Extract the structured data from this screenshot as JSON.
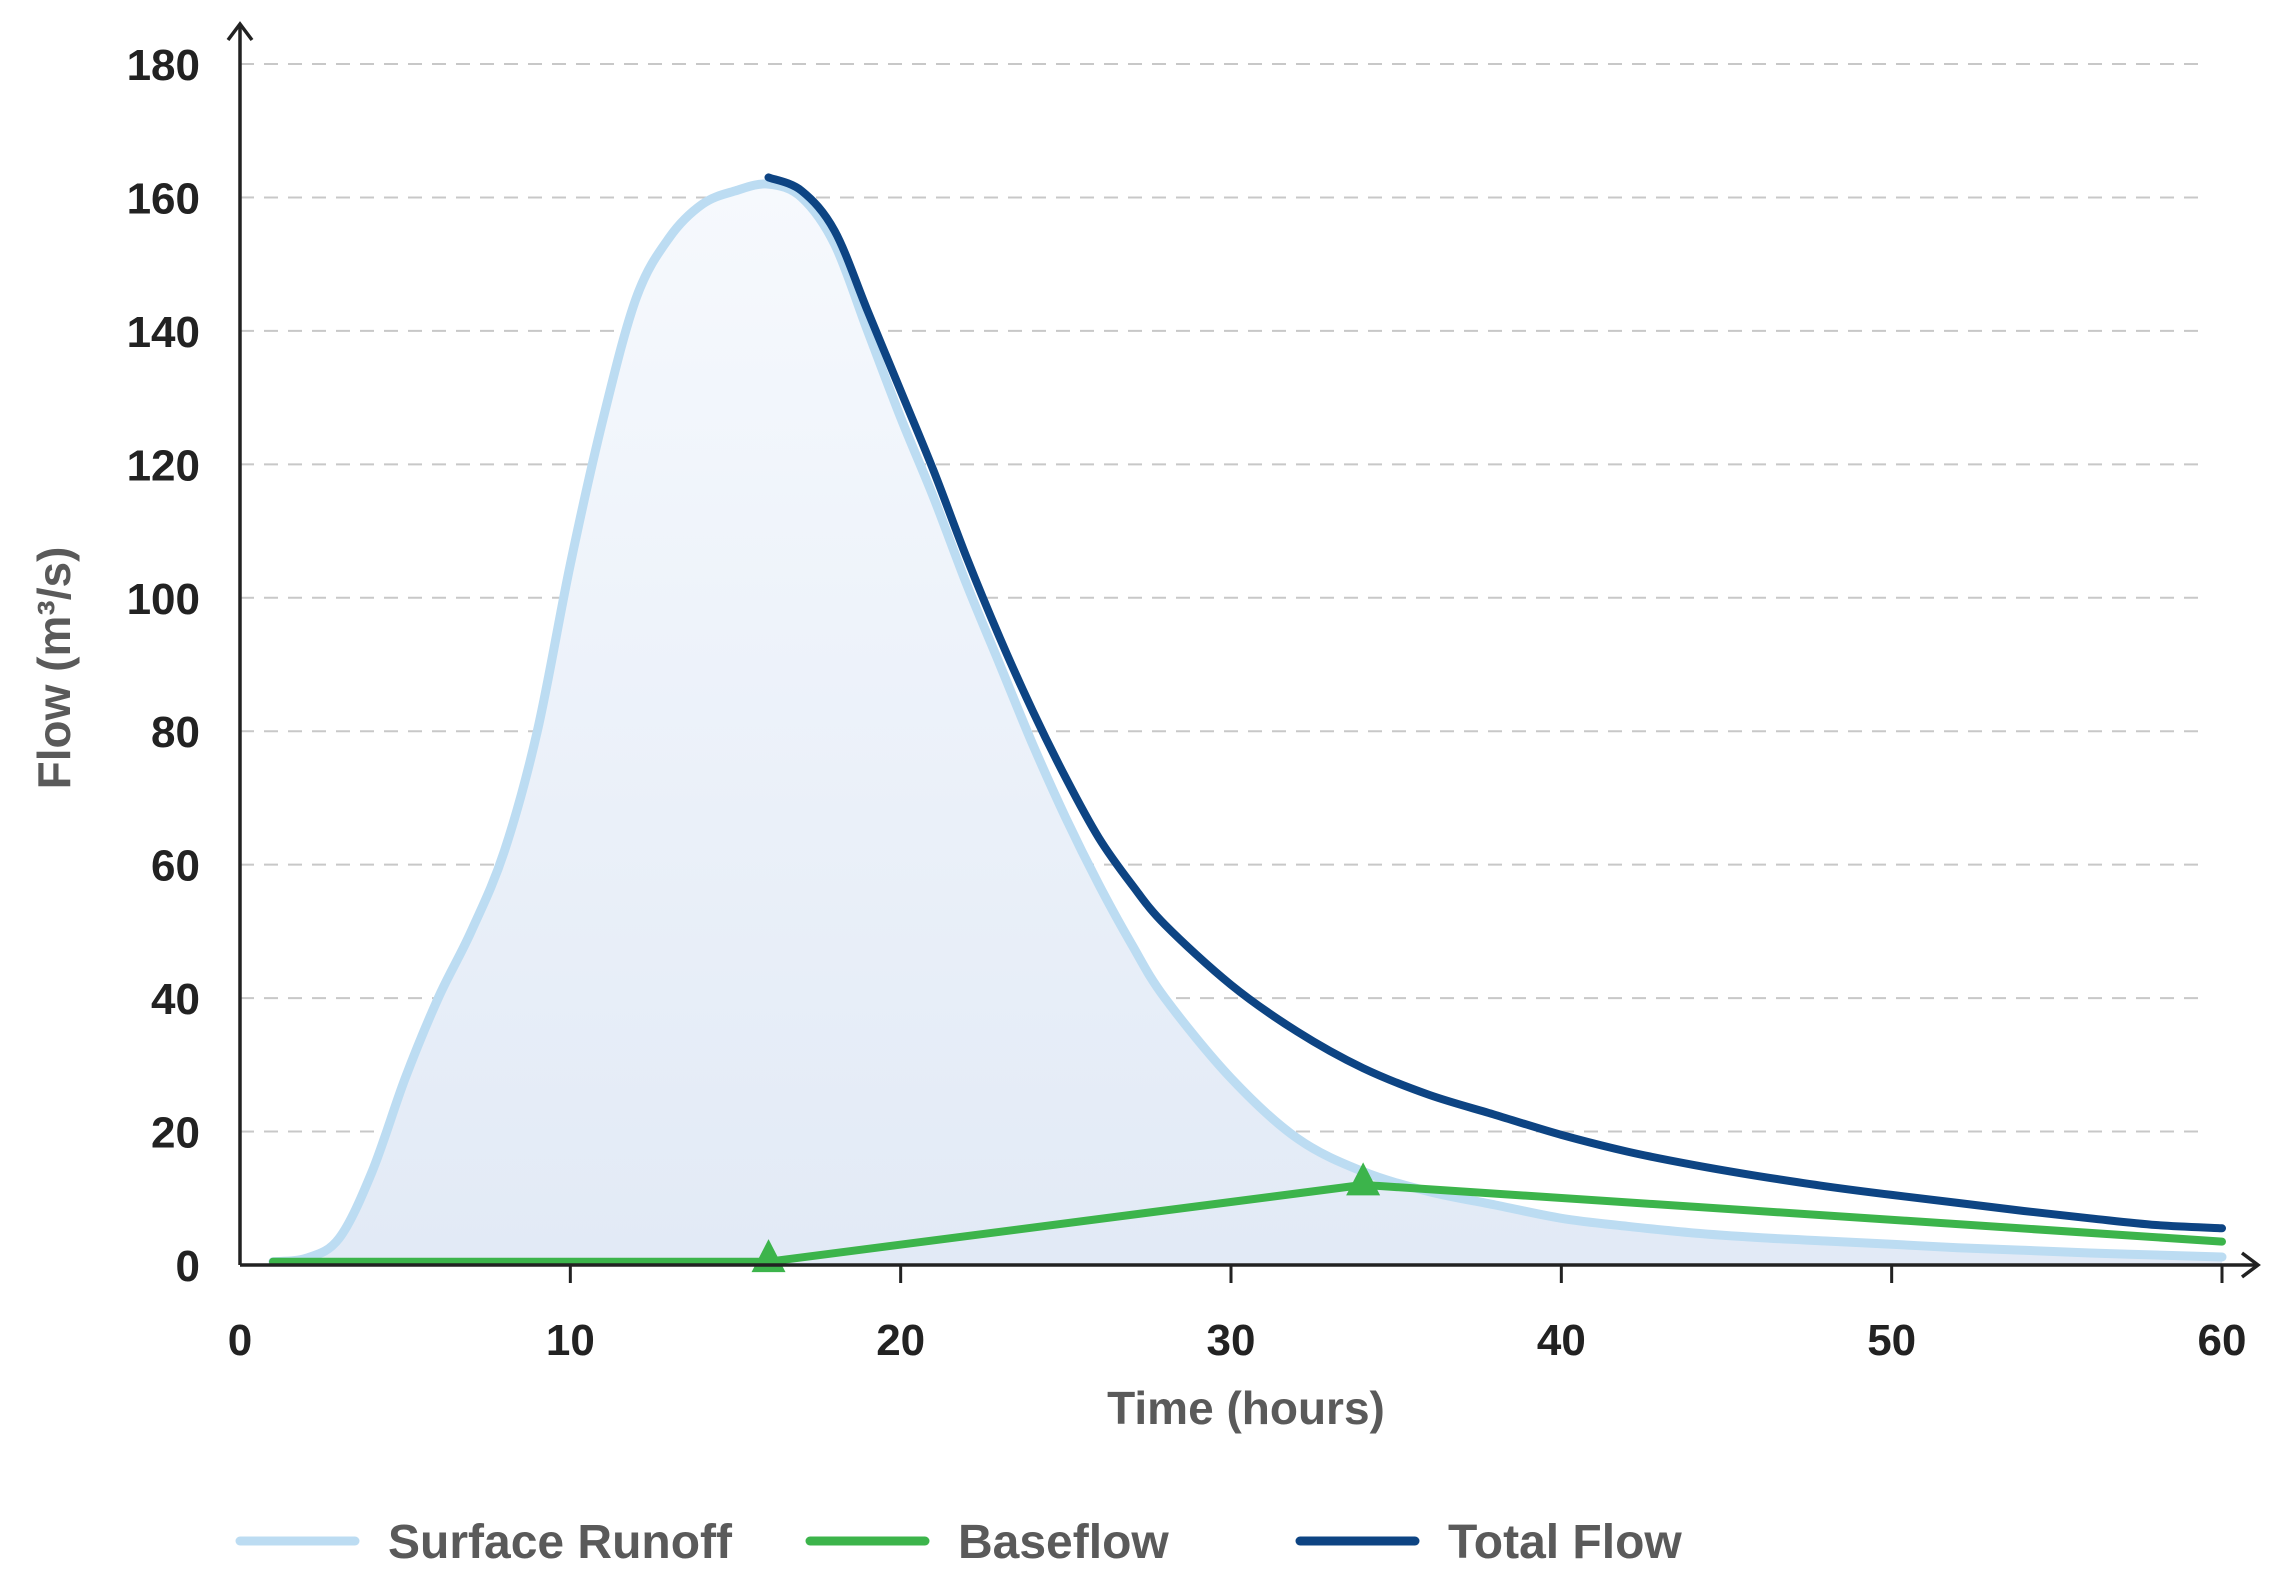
{
  "chart_data": {
    "type": "line",
    "xlabel": "Time (hours)",
    "ylabel": "Flow (m³/s)",
    "xlim": [
      0,
      60
    ],
    "ylim": [
      0,
      180
    ],
    "xticks": [
      0,
      10,
      20,
      30,
      40,
      50,
      60
    ],
    "yticks": [
      0,
      20,
      40,
      60,
      80,
      100,
      120,
      140,
      160,
      180
    ],
    "grid": "horizontal dashed",
    "legend_position": "bottom",
    "series": [
      {
        "name": "Surface Runoff",
        "color": "#bcdcf2",
        "fill": true,
        "x": [
          1,
          2,
          3,
          4,
          5,
          6,
          7,
          8,
          9,
          10,
          11,
          12,
          13,
          14,
          15,
          16,
          17,
          18,
          19,
          20,
          21,
          22,
          23,
          24,
          25,
          26,
          27,
          28,
          30,
          32,
          34,
          36,
          38,
          40,
          42,
          44,
          46,
          48,
          50,
          52,
          54,
          56,
          58,
          60
        ],
        "y": [
          0.5,
          1,
          4,
          14,
          28,
          40,
          50,
          62,
          80,
          105,
          127,
          145,
          154,
          159,
          161,
          162,
          160,
          153,
          140,
          127,
          115,
          102,
          90,
          78,
          67,
          57,
          48,
          40,
          28,
          19,
          14,
          11,
          9,
          7,
          5.8,
          4.8,
          4.1,
          3.6,
          3.1,
          2.6,
          2.2,
          1.8,
          1.5,
          1.2
        ]
      },
      {
        "name": "Baseflow",
        "color": "#3cb44b",
        "x": [
          1,
          16,
          34,
          60
        ],
        "y": [
          0.5,
          0.5,
          12,
          3.5
        ],
        "markers": [
          {
            "x": 16,
            "y": 0.5
          },
          {
            "x": 34,
            "y": 12
          }
        ]
      },
      {
        "name": "Total Flow",
        "color": "#0d4483",
        "x": [
          16,
          17,
          18,
          19,
          20,
          21,
          22,
          23,
          24,
          25,
          26,
          27,
          28,
          30,
          32,
          34,
          36,
          38,
          40,
          42,
          44,
          46,
          48,
          50,
          52,
          54,
          56,
          58,
          60
        ],
        "y": [
          163,
          161,
          155,
          143,
          131,
          119,
          106,
          94,
          83,
          73,
          64,
          57,
          51,
          42,
          35,
          29.5,
          25.5,
          22.5,
          19.5,
          17,
          15,
          13.3,
          11.8,
          10.5,
          9.3,
          8.1,
          7,
          6,
          5.5
        ]
      }
    ]
  }
}
